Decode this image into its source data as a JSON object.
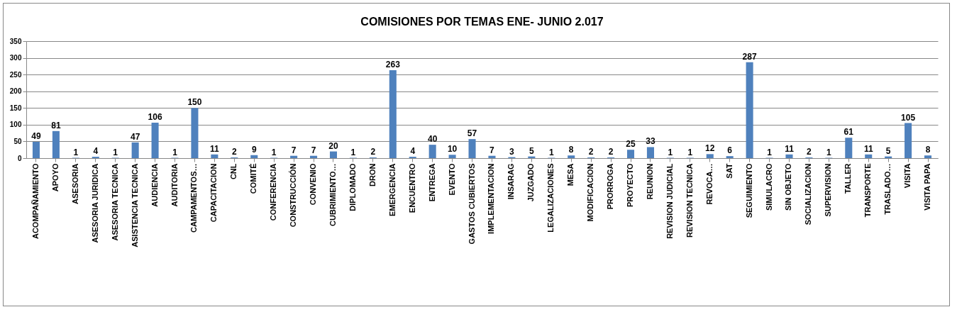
{
  "chart_data": {
    "type": "bar",
    "title": "COMISIONES POR TEMAS ENE- JUNIO 2.017",
    "categories": [
      "ACOMPAÑAMIENTO",
      "APOYO",
      "ASESORIA",
      "ASESORIA JURIDICA",
      "ASESORIA TECNICA",
      "ASISTENCIA TECNICA",
      "AUDIENCIA",
      "AUDITORIA",
      "CAMPAMENTOS…",
      "CAPACITACION",
      "CNL",
      "COMITÉ",
      "CONFERENCIA",
      "CONSTRUCCIÓN",
      "CONVENIO",
      "CUBRIMIENTO…",
      "DIPLOMADO",
      "DRON",
      "EMERGENCIA",
      "ENCUENTRO",
      "ENTREGA",
      "EVENTO",
      "GASTOS CUBIERTOS",
      "IMPLEMENTACION",
      "INSARAG",
      "JUZGADO",
      "LEGALIZACIONES",
      "MESA",
      "MODIFICACION",
      "PRORROGA",
      "PROYECTO",
      "REUNION",
      "REVISION JUDICIAL",
      "REVISION TECNICA",
      "REVOCA…",
      "SAT",
      "SEGUIMIENTO",
      "SIMULACRO",
      "SIN OBJETO",
      "SOCIALIZACION",
      "SUPERVISION",
      "TALLER",
      "TRANSPORTE",
      "TRASLADO…",
      "VISITA",
      "VISITA PAPA"
    ],
    "values": [
      49,
      81,
      1,
      4,
      1,
      47,
      106,
      1,
      150,
      11,
      2,
      9,
      1,
      7,
      7,
      20,
      1,
      2,
      263,
      4,
      40,
      10,
      57,
      7,
      3,
      5,
      1,
      8,
      2,
      2,
      25,
      33,
      1,
      1,
      12,
      6,
      287,
      1,
      11,
      2,
      1,
      61,
      11,
      5,
      105,
      8
    ],
    "color": "#4f81bd",
    "ylim": [
      0,
      350
    ],
    "yticks": [
      0,
      50,
      100,
      150,
      200,
      250,
      300,
      350
    ],
    "grid": "y",
    "data_labels": true
  }
}
